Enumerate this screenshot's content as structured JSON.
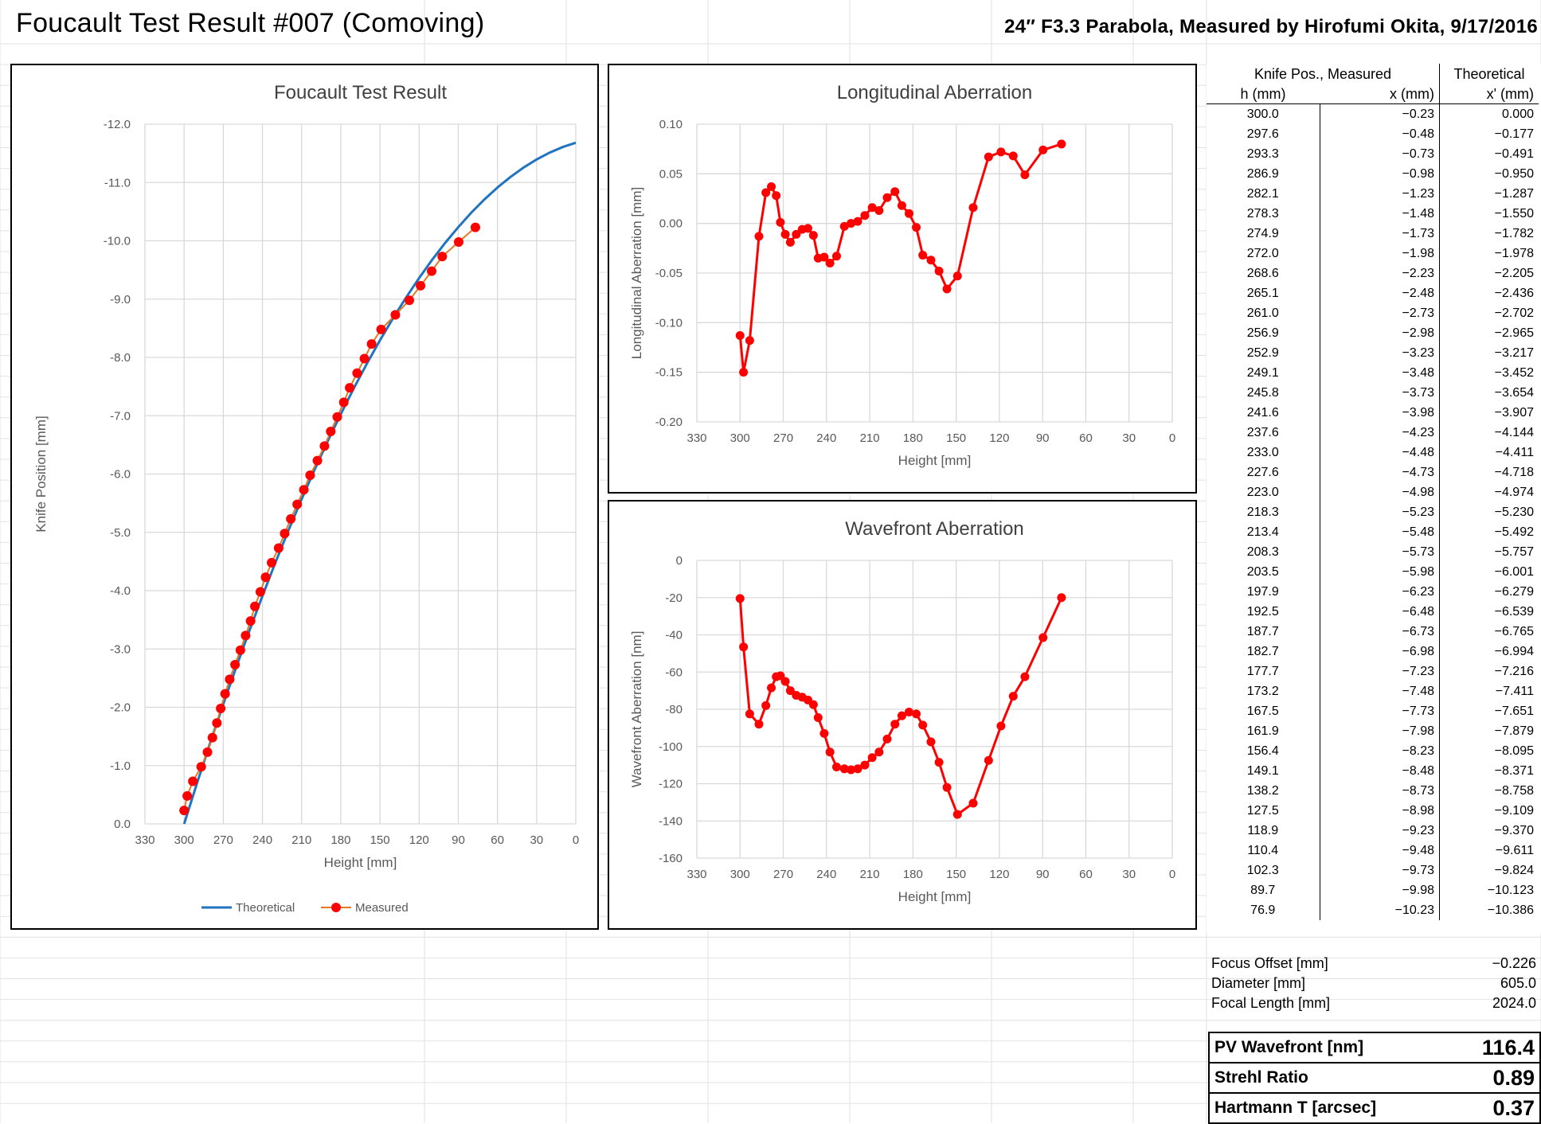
{
  "header": {
    "title": "Foucault Test Result #007 (Comoving)",
    "subtitle": "24″ F3.3 Parabola, Measured by Hirofumi Okita, 9/17/2016"
  },
  "table": {
    "group_header": "Knife Pos., Measured",
    "theoretical_header": "Theoretical",
    "col_h": "h (mm)",
    "col_x": "x (mm)",
    "col_xt": "x' (mm)",
    "rows": [
      [
        "300.0",
        "−0.23",
        "0.000"
      ],
      [
        "297.6",
        "−0.48",
        "−0.177"
      ],
      [
        "293.3",
        "−0.73",
        "−0.491"
      ],
      [
        "286.9",
        "−0.98",
        "−0.950"
      ],
      [
        "282.1",
        "−1.23",
        "−1.287"
      ],
      [
        "278.3",
        "−1.48",
        "−1.550"
      ],
      [
        "274.9",
        "−1.73",
        "−1.782"
      ],
      [
        "272.0",
        "−1.98",
        "−1.978"
      ],
      [
        "268.6",
        "−2.23",
        "−2.205"
      ],
      [
        "265.1",
        "−2.48",
        "−2.436"
      ],
      [
        "261.0",
        "−2.73",
        "−2.702"
      ],
      [
        "256.9",
        "−2.98",
        "−2.965"
      ],
      [
        "252.9",
        "−3.23",
        "−3.217"
      ],
      [
        "249.1",
        "−3.48",
        "−3.452"
      ],
      [
        "245.8",
        "−3.73",
        "−3.654"
      ],
      [
        "241.6",
        "−3.98",
        "−3.907"
      ],
      [
        "237.6",
        "−4.23",
        "−4.144"
      ],
      [
        "233.0",
        "−4.48",
        "−4.411"
      ],
      [
        "227.6",
        "−4.73",
        "−4.718"
      ],
      [
        "223.0",
        "−4.98",
        "−4.974"
      ],
      [
        "218.3",
        "−5.23",
        "−5.230"
      ],
      [
        "213.4",
        "−5.48",
        "−5.492"
      ],
      [
        "208.3",
        "−5.73",
        "−5.757"
      ],
      [
        "203.5",
        "−5.98",
        "−6.001"
      ],
      [
        "197.9",
        "−6.23",
        "−6.279"
      ],
      [
        "192.5",
        "−6.48",
        "−6.539"
      ],
      [
        "187.7",
        "−6.73",
        "−6.765"
      ],
      [
        "182.7",
        "−6.98",
        "−6.994"
      ],
      [
        "177.7",
        "−7.23",
        "−7.216"
      ],
      [
        "173.2",
        "−7.48",
        "−7.411"
      ],
      [
        "167.5",
        "−7.73",
        "−7.651"
      ],
      [
        "161.9",
        "−7.98",
        "−7.879"
      ],
      [
        "156.4",
        "−8.23",
        "−8.095"
      ],
      [
        "149.1",
        "−8.48",
        "−8.371"
      ],
      [
        "138.2",
        "−8.73",
        "−8.758"
      ],
      [
        "127.5",
        "−8.98",
        "−9.109"
      ],
      [
        "118.9",
        "−9.23",
        "−9.370"
      ],
      [
        "110.4",
        "−9.48",
        "−9.611"
      ],
      [
        "102.3",
        "−9.73",
        "−9.824"
      ],
      [
        "89.7",
        "−9.98",
        "−10.123"
      ],
      [
        "76.9",
        "−10.23",
        "−10.386"
      ]
    ]
  },
  "params": [
    {
      "label": "Focus Offset [mm]",
      "value": "−0.226"
    },
    {
      "label": "Diameter [mm]",
      "value": "605.0"
    },
    {
      "label": "Focal Length [mm]",
      "value": "2024.0"
    }
  ],
  "results": [
    {
      "label": "PV Wavefront [nm]",
      "value": "116.4"
    },
    {
      "label": "Strehl Ratio",
      "value": "0.89"
    },
    {
      "label": "Hartmann T [arcsec]",
      "value": "0.37"
    }
  ],
  "colors": {
    "measured_line": "#e87722",
    "measured_marker": "#ff0000",
    "theoretical": "#1f73c0",
    "red_series": "#ff0000",
    "grid": "#d9d9d9"
  },
  "chart_data": [
    {
      "type": "line",
      "title": "Foucault Test Result",
      "xlabel": "Height [mm]",
      "ylabel": "Knife Position [mm]",
      "xlim": [
        330,
        0
      ],
      "ylim": [
        0,
        -12
      ],
      "xticks": [
        330,
        300,
        270,
        240,
        210,
        180,
        150,
        120,
        90,
        60,
        30,
        0
      ],
      "xtick_labels": [
        "330",
        "300",
        "270",
        "240",
        "210",
        "180",
        "150",
        "120",
        "90",
        "60",
        "30",
        "0"
      ],
      "yticks": [
        0,
        -1,
        -2,
        -3,
        -4,
        -5,
        -6,
        -7,
        -8,
        -9,
        -10,
        -11,
        -12
      ],
      "ytick_labels": [
        "0.0",
        "-1.0",
        "-2.0",
        "-3.0",
        "-4.0",
        "-5.0",
        "-6.0",
        "-7.0",
        "-8.0",
        "-9.0",
        "-10.0",
        "-11.0",
        "-12.0"
      ],
      "legend_position": "bottom",
      "legend": [
        "Theoretical",
        "Measured"
      ],
      "theoretical_curve": {
        "name": "Theoretical",
        "x": [
          300,
          290,
          280,
          270,
          260,
          250,
          240,
          230,
          220,
          210,
          200,
          190,
          180,
          170,
          160,
          150,
          140,
          130,
          120,
          110,
          100,
          90,
          80,
          70,
          60,
          50,
          40,
          30,
          20,
          10,
          0
        ],
        "y": [
          0.0,
          -0.707,
          -1.392,
          -2.054,
          -2.695,
          -3.313,
          -3.909,
          -4.484,
          -5.036,
          -5.567,
          -6.076,
          -6.563,
          -7.028,
          -7.471,
          -7.893,
          -8.293,
          -8.671,
          -9.027,
          -9.362,
          -9.675,
          -9.966,
          -10.235,
          -10.483,
          -10.709,
          -10.913,
          -11.095,
          -11.256,
          -11.395,
          -11.512,
          -11.608,
          -11.682
        ]
      },
      "measured": {
        "name": "Measured",
        "x": [
          300.0,
          297.6,
          293.3,
          286.9,
          282.1,
          278.3,
          274.9,
          272.0,
          268.6,
          265.1,
          261.0,
          256.9,
          252.9,
          249.1,
          245.8,
          241.6,
          237.6,
          233.0,
          227.6,
          223.0,
          218.3,
          213.4,
          208.3,
          203.5,
          197.9,
          192.5,
          187.7,
          182.7,
          177.7,
          173.2,
          167.5,
          161.9,
          156.4,
          149.1,
          138.2,
          127.5,
          118.9,
          110.4,
          102.3,
          89.7,
          76.9
        ],
        "y": [
          -0.23,
          -0.48,
          -0.73,
          -0.98,
          -1.23,
          -1.48,
          -1.73,
          -1.98,
          -2.23,
          -2.48,
          -2.73,
          -2.98,
          -3.23,
          -3.48,
          -3.73,
          -3.98,
          -4.23,
          -4.48,
          -4.73,
          -4.98,
          -5.23,
          -5.48,
          -5.73,
          -5.98,
          -6.23,
          -6.48,
          -6.73,
          -6.98,
          -7.23,
          -7.48,
          -7.73,
          -7.98,
          -8.23,
          -8.48,
          -8.73,
          -8.98,
          -9.23,
          -9.48,
          -9.73,
          -9.98,
          -10.23
        ]
      }
    },
    {
      "type": "line",
      "title": "Longitudinal Aberration",
      "xlabel": "Height [mm]",
      "ylabel": "Longitudinal Aberration [mm]",
      "xlim": [
        330,
        0
      ],
      "ylim": [
        -0.2,
        0.1
      ],
      "xticks": [
        330,
        300,
        270,
        240,
        210,
        180,
        150,
        120,
        90,
        60,
        30,
        0
      ],
      "xtick_labels": [
        "330",
        "300",
        "270",
        "240",
        "210",
        "180",
        "150",
        "120",
        "90",
        "60",
        "30",
        "0"
      ],
      "yticks": [
        0.1,
        0.05,
        0,
        -0.05,
        -0.1,
        -0.15,
        -0.2
      ],
      "ytick_labels": [
        "0.10",
        "0.05",
        "0.00",
        "-0.05",
        "-0.10",
        "-0.15",
        "-0.20"
      ],
      "x": [
        300.0,
        297.6,
        293.3,
        286.9,
        282.1,
        278.3,
        274.9,
        272.0,
        268.6,
        265.1,
        261.0,
        256.9,
        252.9,
        249.1,
        245.8,
        241.6,
        237.6,
        233.0,
        227.6,
        223.0,
        218.3,
        213.4,
        208.3,
        203.5,
        197.9,
        192.5,
        187.7,
        182.7,
        177.7,
        173.2,
        167.5,
        161.9,
        156.4,
        149.1,
        138.2,
        127.5,
        118.9,
        110.4,
        102.3,
        89.7,
        76.9
      ],
      "y": [
        -0.113,
        -0.15,
        -0.118,
        -0.013,
        0.031,
        0.037,
        0.028,
        0.001,
        -0.011,
        -0.019,
        -0.011,
        -0.006,
        -0.005,
        -0.012,
        -0.035,
        -0.034,
        -0.04,
        -0.033,
        -0.003,
        0.0,
        0.002,
        0.008,
        0.016,
        0.013,
        0.026,
        0.032,
        0.018,
        0.01,
        -0.004,
        -0.032,
        -0.037,
        -0.048,
        -0.066,
        -0.053,
        0.016,
        0.067,
        0.072,
        0.068,
        0.049,
        0.074,
        0.08
      ]
    },
    {
      "type": "line",
      "title": "Wavefront Aberration",
      "xlabel": "Height [mm]",
      "ylabel": "Wavefront Aberration [nm]",
      "xlim": [
        330,
        0
      ],
      "ylim": [
        -160,
        0
      ],
      "xticks": [
        330,
        300,
        270,
        240,
        210,
        180,
        150,
        120,
        90,
        60,
        30,
        0
      ],
      "xtick_labels": [
        "330",
        "300",
        "270",
        "240",
        "210",
        "180",
        "150",
        "120",
        "90",
        "60",
        "30",
        "0"
      ],
      "yticks": [
        0,
        -20,
        -40,
        -60,
        -80,
        -100,
        -120,
        -140,
        -160
      ],
      "ytick_labels": [
        "0",
        "-20",
        "-40",
        "-60",
        "-80",
        "-100",
        "-120",
        "-140",
        "-160"
      ],
      "x": [
        300.0,
        297.6,
        293.3,
        286.9,
        282.1,
        278.3,
        274.9,
        272.0,
        268.6,
        265.1,
        261.0,
        256.9,
        252.9,
        249.1,
        245.8,
        241.6,
        237.6,
        233.0,
        227.6,
        223.0,
        218.3,
        213.4,
        208.3,
        203.5,
        197.9,
        192.5,
        187.7,
        182.7,
        177.7,
        173.2,
        167.5,
        161.9,
        156.4,
        149.1,
        138.2,
        127.5,
        118.9,
        110.4,
        102.3,
        89.7,
        76.9
      ],
      "y": [
        -20.5,
        -46.5,
        -82.5,
        -88.0,
        -78.0,
        -68.5,
        -62.5,
        -62.0,
        -65.0,
        -70.0,
        -72.5,
        -73.5,
        -75.0,
        -77.5,
        -84.5,
        -93.0,
        -103.0,
        -111.0,
        -112.0,
        -112.5,
        -112.0,
        -110.0,
        -106.0,
        -103.0,
        -96.0,
        -88.0,
        -83.5,
        -81.5,
        -82.5,
        -88.5,
        -97.5,
        -108.5,
        -122.0,
        -136.5,
        -130.5,
        -107.5,
        -89.0,
        -73.0,
        -62.5,
        -41.5,
        -20.0
      ]
    }
  ]
}
